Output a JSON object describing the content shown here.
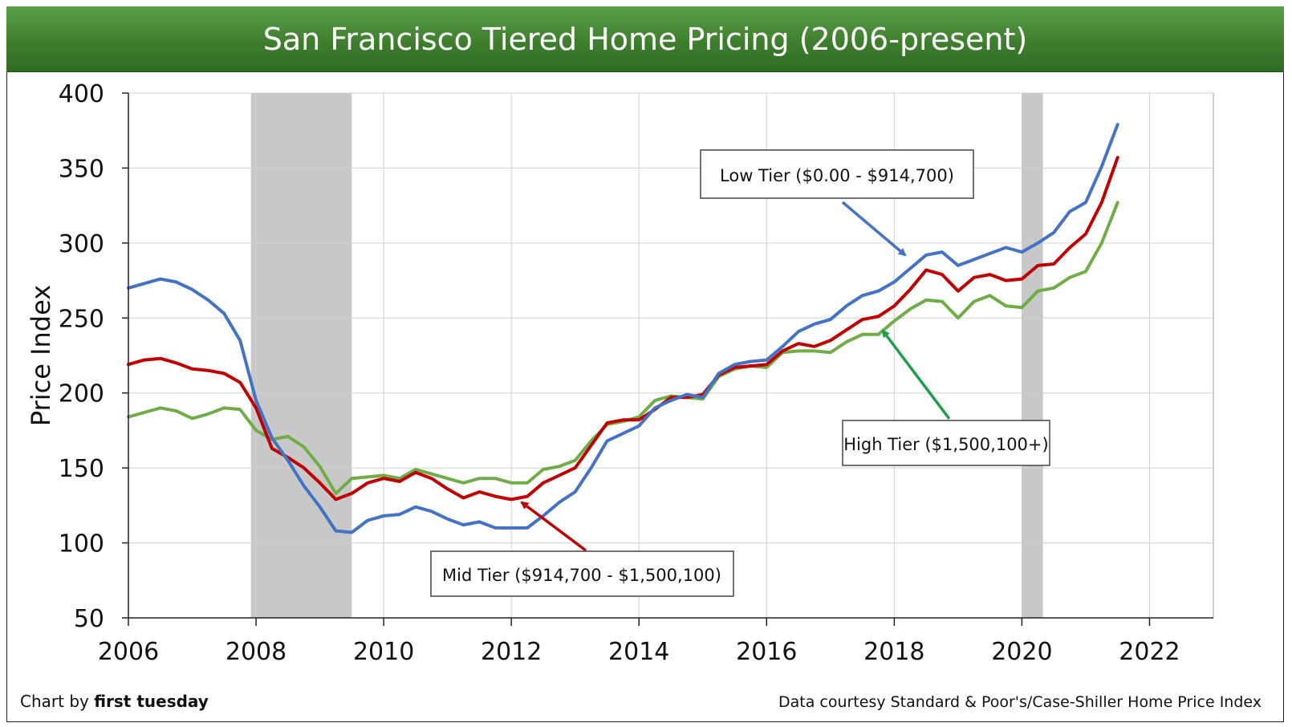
{
  "title": "San Francisco Tiered Home Pricing (2006-present)",
  "footer": {
    "credit_prefix": "Chart by ",
    "credit_brand": "first tuesday",
    "source": "Data courtesy Standard & Poor's/Case-Shiller Home Price Index"
  },
  "chart_data": {
    "type": "line",
    "title": "San Francisco Tiered Home Pricing (2006-present)",
    "xlabel": "",
    "ylabel": "Price Index",
    "xlim": [
      2006,
      2023
    ],
    "ylim": [
      50,
      400
    ],
    "x_ticks": [
      "2006",
      "2008",
      "2010",
      "2012",
      "2014",
      "2016",
      "2018",
      "2020",
      "2022"
    ],
    "y_ticks": [
      "50",
      "100",
      "150",
      "200",
      "250",
      "300",
      "350",
      "400"
    ],
    "grid": true,
    "recessions": [
      [
        2007.92,
        2009.5
      ],
      [
        2020.0,
        2020.33
      ]
    ],
    "series": [
      {
        "name": "Low Tier ($0.00 - $914,700)",
        "color": "#4472c4",
        "points": [
          [
            2006.0,
            270
          ],
          [
            2006.25,
            273
          ],
          [
            2006.5,
            276
          ],
          [
            2006.75,
            274
          ],
          [
            2007.0,
            269
          ],
          [
            2007.25,
            262
          ],
          [
            2007.5,
            253
          ],
          [
            2007.75,
            235
          ],
          [
            2008.0,
            195
          ],
          [
            2008.25,
            170
          ],
          [
            2008.5,
            155
          ],
          [
            2008.75,
            138
          ],
          [
            2009.0,
            124
          ],
          [
            2009.25,
            108
          ],
          [
            2009.5,
            107
          ],
          [
            2009.75,
            115
          ],
          [
            2010.0,
            118
          ],
          [
            2010.25,
            119
          ],
          [
            2010.5,
            124
          ],
          [
            2010.75,
            121
          ],
          [
            2011.0,
            116
          ],
          [
            2011.25,
            112
          ],
          [
            2011.5,
            114
          ],
          [
            2011.75,
            110
          ],
          [
            2012.0,
            110
          ],
          [
            2012.25,
            110
          ],
          [
            2012.5,
            118
          ],
          [
            2012.75,
            127
          ],
          [
            2013.0,
            134
          ],
          [
            2013.25,
            150
          ],
          [
            2013.5,
            168
          ],
          [
            2013.75,
            173
          ],
          [
            2014.0,
            178
          ],
          [
            2014.25,
            190
          ],
          [
            2014.5,
            195
          ],
          [
            2014.75,
            199
          ],
          [
            2015.0,
            197
          ],
          [
            2015.25,
            213
          ],
          [
            2015.5,
            219
          ],
          [
            2015.75,
            221
          ],
          [
            2016.0,
            222
          ],
          [
            2016.25,
            231
          ],
          [
            2016.5,
            241
          ],
          [
            2016.75,
            246
          ],
          [
            2017.0,
            249
          ],
          [
            2017.25,
            258
          ],
          [
            2017.5,
            265
          ],
          [
            2017.75,
            268
          ],
          [
            2018.0,
            274
          ],
          [
            2018.25,
            283
          ],
          [
            2018.5,
            292
          ],
          [
            2018.75,
            294
          ],
          [
            2019.0,
            285
          ],
          [
            2019.25,
            289
          ],
          [
            2019.5,
            293
          ],
          [
            2019.75,
            297
          ],
          [
            2020.0,
            294
          ],
          [
            2020.25,
            300
          ],
          [
            2020.5,
            307
          ],
          [
            2020.75,
            321
          ],
          [
            2021.0,
            327
          ],
          [
            2021.25,
            351
          ],
          [
            2021.5,
            379
          ]
        ]
      },
      {
        "name": "Mid Tier ($914,700 - $1,500,100)",
        "color": "#c00000",
        "points": [
          [
            2006.0,
            219
          ],
          [
            2006.25,
            222
          ],
          [
            2006.5,
            223
          ],
          [
            2006.75,
            220
          ],
          [
            2007.0,
            216
          ],
          [
            2007.25,
            215
          ],
          [
            2007.5,
            213
          ],
          [
            2007.75,
            207
          ],
          [
            2008.0,
            190
          ],
          [
            2008.25,
            163
          ],
          [
            2008.5,
            157
          ],
          [
            2008.75,
            150
          ],
          [
            2009.0,
            140
          ],
          [
            2009.25,
            129
          ],
          [
            2009.5,
            133
          ],
          [
            2009.75,
            140
          ],
          [
            2010.0,
            143
          ],
          [
            2010.25,
            141
          ],
          [
            2010.5,
            147
          ],
          [
            2010.75,
            143
          ],
          [
            2011.0,
            136
          ],
          [
            2011.25,
            130
          ],
          [
            2011.5,
            134
          ],
          [
            2011.75,
            131
          ],
          [
            2012.0,
            129
          ],
          [
            2012.25,
            131
          ],
          [
            2012.5,
            140
          ],
          [
            2012.75,
            145
          ],
          [
            2013.0,
            150
          ],
          [
            2013.25,
            165
          ],
          [
            2013.5,
            180
          ],
          [
            2013.75,
            182
          ],
          [
            2014.0,
            182
          ],
          [
            2014.25,
            189
          ],
          [
            2014.5,
            197
          ],
          [
            2014.75,
            197
          ],
          [
            2015.0,
            199
          ],
          [
            2015.25,
            212
          ],
          [
            2015.5,
            217
          ],
          [
            2015.75,
            218
          ],
          [
            2016.0,
            219
          ],
          [
            2016.25,
            228
          ],
          [
            2016.5,
            233
          ],
          [
            2016.75,
            231
          ],
          [
            2017.0,
            235
          ],
          [
            2017.25,
            242
          ],
          [
            2017.5,
            249
          ],
          [
            2017.75,
            251
          ],
          [
            2018.0,
            258
          ],
          [
            2018.25,
            269
          ],
          [
            2018.5,
            282
          ],
          [
            2018.75,
            279
          ],
          [
            2019.0,
            268
          ],
          [
            2019.25,
            277
          ],
          [
            2019.5,
            279
          ],
          [
            2019.75,
            275
          ],
          [
            2020.0,
            276
          ],
          [
            2020.25,
            285
          ],
          [
            2020.5,
            286
          ],
          [
            2020.75,
            297
          ],
          [
            2021.0,
            306
          ],
          [
            2021.25,
            327
          ],
          [
            2021.5,
            357
          ]
        ]
      },
      {
        "name": "High Tier ($1,500,100+)",
        "color": "#70ad47",
        "points": [
          [
            2006.0,
            184
          ],
          [
            2006.25,
            187
          ],
          [
            2006.5,
            190
          ],
          [
            2006.75,
            188
          ],
          [
            2007.0,
            183
          ],
          [
            2007.25,
            186
          ],
          [
            2007.5,
            190
          ],
          [
            2007.75,
            189
          ],
          [
            2008.0,
            175
          ],
          [
            2008.25,
            169
          ],
          [
            2008.5,
            171
          ],
          [
            2008.75,
            164
          ],
          [
            2009.0,
            151
          ],
          [
            2009.25,
            133
          ],
          [
            2009.5,
            143
          ],
          [
            2009.75,
            144
          ],
          [
            2010.0,
            145
          ],
          [
            2010.25,
            143
          ],
          [
            2010.5,
            149
          ],
          [
            2010.75,
            146
          ],
          [
            2011.0,
            143
          ],
          [
            2011.25,
            140
          ],
          [
            2011.5,
            143
          ],
          [
            2011.75,
            143
          ],
          [
            2012.0,
            140
          ],
          [
            2012.25,
            140
          ],
          [
            2012.5,
            149
          ],
          [
            2012.75,
            151
          ],
          [
            2013.0,
            155
          ],
          [
            2013.25,
            168
          ],
          [
            2013.5,
            179
          ],
          [
            2013.75,
            181
          ],
          [
            2014.0,
            184
          ],
          [
            2014.25,
            195
          ],
          [
            2014.5,
            198
          ],
          [
            2014.75,
            197
          ],
          [
            2015.0,
            196
          ],
          [
            2015.25,
            211
          ],
          [
            2015.5,
            216
          ],
          [
            2015.75,
            218
          ],
          [
            2016.0,
            217
          ],
          [
            2016.25,
            227
          ],
          [
            2016.5,
            228
          ],
          [
            2016.75,
            228
          ],
          [
            2017.0,
            227
          ],
          [
            2017.25,
            234
          ],
          [
            2017.5,
            239
          ],
          [
            2017.75,
            239
          ],
          [
            2018.0,
            248
          ],
          [
            2018.25,
            256
          ],
          [
            2018.5,
            262
          ],
          [
            2018.75,
            261
          ],
          [
            2019.0,
            250
          ],
          [
            2019.25,
            261
          ],
          [
            2019.5,
            265
          ],
          [
            2019.75,
            258
          ],
          [
            2020.0,
            257
          ],
          [
            2020.25,
            268
          ],
          [
            2020.5,
            270
          ],
          [
            2020.75,
            277
          ],
          [
            2021.0,
            281
          ],
          [
            2021.25,
            300
          ],
          [
            2021.5,
            327
          ]
        ]
      }
    ],
    "annotations": [
      {
        "text": "Low Tier ($0.00 - $914,700)",
        "color": "#4472c4"
      },
      {
        "text": "High Tier ($1,500,100+)",
        "color": "#1aa04a"
      },
      {
        "text": "Mid Tier ($914,700 - $1,500,100)",
        "color": "#c00000"
      }
    ]
  }
}
